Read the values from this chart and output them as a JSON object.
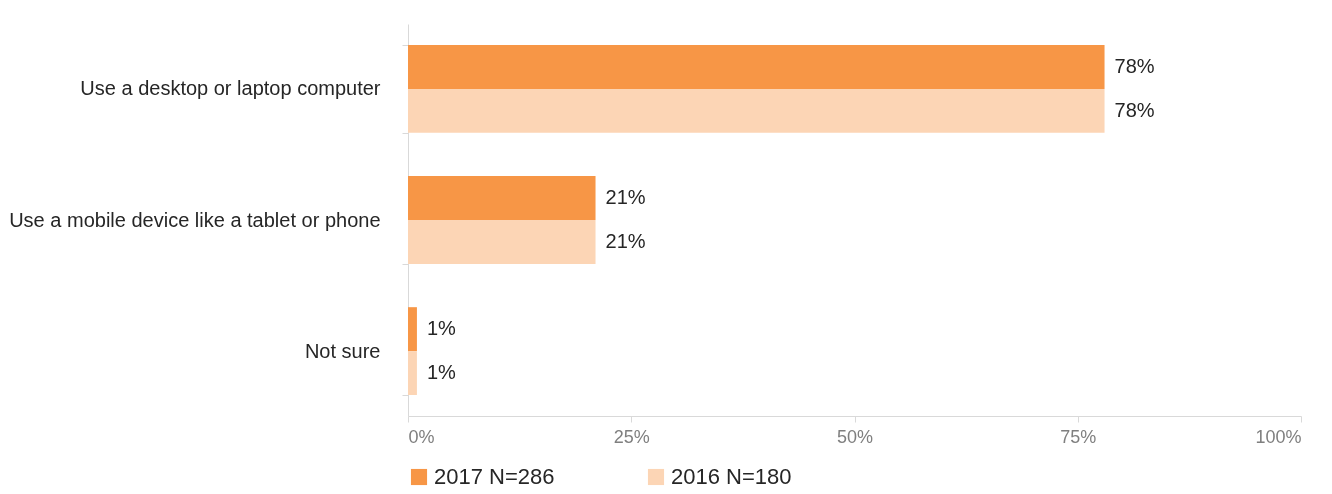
{
  "chart_data": {
    "type": "bar",
    "orientation": "horizontal",
    "categories": [
      "Use a desktop or laptop computer",
      "Use a mobile device like a tablet or phone",
      "Not sure"
    ],
    "series": [
      {
        "name": "2017 N=286",
        "color": "#f79646",
        "values": [
          78,
          21,
          1
        ],
        "value_labels": [
          "78%",
          "21%",
          "1%"
        ]
      },
      {
        "name": "2016 N=180",
        "color": "#fcd5b5",
        "values": [
          78,
          21,
          1
        ],
        "value_labels": [
          "78%",
          "21%",
          "1%"
        ]
      }
    ],
    "xlim": [
      0,
      100
    ],
    "xticks": [
      {
        "value": 0,
        "label": "0%"
      },
      {
        "value": 25,
        "label": "25%"
      },
      {
        "value": 50,
        "label": "50%"
      },
      {
        "value": 75,
        "label": "75%"
      },
      {
        "value": 100,
        "label": "100%"
      }
    ],
    "legend": "bottom"
  }
}
